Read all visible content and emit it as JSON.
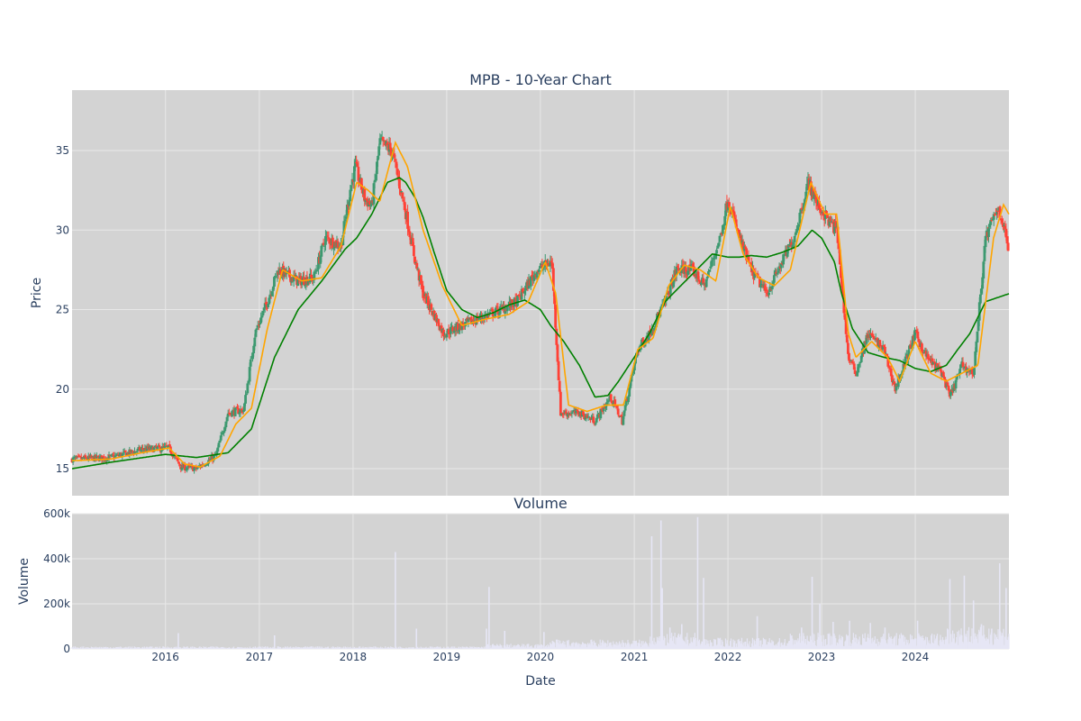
{
  "chart_data": [
    {
      "type": "candlestick",
      "title": "MPB - 10-Year Chart",
      "ylabel": "Price",
      "xlim": [
        "2015-01-02",
        "2024-12-31"
      ],
      "ylim": [
        13.3,
        38.8
      ],
      "yticks": [
        15,
        20,
        25,
        30,
        35
      ],
      "grid": true,
      "legend": "none",
      "colors": {
        "background": "#d3d3d3",
        "grid": "#e8e8e8",
        "increasing": "#3d9970",
        "decreasing": "#ff4136",
        "ma_short": "#ffa500",
        "ma_long": "#008000"
      },
      "price_path": {
        "x": [
          "2015-01-02",
          "2015-06-01",
          "2015-10-01",
          "2016-01-15",
          "2016-03-01",
          "2016-05-01",
          "2016-07-15",
          "2016-09-01",
          "2016-11-01",
          "2016-12-15",
          "2017-02-01",
          "2017-03-15",
          "2017-06-01",
          "2017-08-01",
          "2017-09-15",
          "2017-11-15",
          "2017-12-20",
          "2018-01-10",
          "2018-02-15",
          "2018-03-15",
          "2018-04-15",
          "2018-06-01",
          "2018-07-20",
          "2018-09-01",
          "2018-10-01",
          "2018-12-20",
          "2019-03-01",
          "2019-05-15",
          "2019-08-01",
          "2019-10-01",
          "2019-12-20",
          "2020-02-15",
          "2020-03-20",
          "2020-06-01",
          "2020-08-01",
          "2020-10-01",
          "2020-11-15",
          "2021-01-15",
          "2021-03-01",
          "2021-05-01",
          "2021-06-15",
          "2021-08-15",
          "2021-10-01",
          "2021-12-01",
          "2022-01-01",
          "2022-02-15",
          "2022-04-01",
          "2022-06-01",
          "2022-08-01",
          "2022-09-15",
          "2022-11-10",
          "2022-12-20",
          "2023-02-01",
          "2023-03-01",
          "2023-04-15",
          "2023-05-15",
          "2023-07-01",
          "2023-09-01",
          "2023-10-15",
          "2024-01-01",
          "2024-02-15",
          "2024-04-15",
          "2024-05-15",
          "2024-07-01",
          "2024-08-15",
          "2024-10-01",
          "2024-11-20",
          "2024-12-31"
        ],
        "price": [
          15.6,
          15.7,
          16.2,
          16.3,
          15.1,
          15.0,
          15.8,
          18.5,
          18.7,
          23.5,
          25.5,
          27.5,
          26.8,
          27.0,
          29.5,
          29.0,
          32.5,
          34.0,
          32.0,
          31.5,
          35.5,
          35.0,
          31.5,
          28.0,
          26.0,
          23.5,
          24.0,
          24.5,
          25.0,
          25.5,
          27.5,
          28.0,
          18.5,
          18.5,
          18.0,
          19.5,
          18.0,
          22.5,
          23.5,
          25.5,
          27.5,
          27.5,
          26.5,
          29.5,
          32.0,
          29.5,
          27.5,
          26.0,
          28.0,
          29.5,
          33.0,
          31.5,
          30.5,
          30.0,
          22.0,
          21.0,
          23.5,
          22.5,
          20.0,
          23.5,
          22.0,
          21.0,
          19.5,
          21.5,
          21.0,
          29.5,
          31.5,
          28.8
        ]
      },
      "ma_short": {
        "x": [
          "2015-01-02",
          "2015-06-01",
          "2015-10-01",
          "2016-01-15",
          "2016-03-15",
          "2016-05-15",
          "2016-08-01",
          "2016-10-01",
          "2016-12-01",
          "2017-02-01",
          "2017-04-01",
          "2017-06-15",
          "2017-09-01",
          "2017-11-15",
          "2018-01-15",
          "2018-03-01",
          "2018-04-15",
          "2018-06-15",
          "2018-08-01",
          "2018-10-01",
          "2018-12-15",
          "2019-03-01",
          "2019-06-01",
          "2019-09-01",
          "2019-11-15",
          "2020-01-20",
          "2020-03-01",
          "2020-04-20",
          "2020-07-01",
          "2020-09-15",
          "2020-11-20",
          "2021-01-15",
          "2021-03-15",
          "2021-05-15",
          "2021-07-15",
          "2021-09-15",
          "2021-11-15",
          "2022-01-10",
          "2022-03-01",
          "2022-05-01",
          "2022-07-01",
          "2022-09-01",
          "2022-11-20",
          "2023-01-15",
          "2023-03-01",
          "2023-04-15",
          "2023-05-15",
          "2023-07-15",
          "2023-09-15",
          "2023-11-01",
          "2024-01-01",
          "2024-03-01",
          "2024-05-01",
          "2024-07-01",
          "2024-09-01",
          "2024-11-01",
          "2024-12-10",
          "2024-12-31"
        ],
        "value": [
          15.5,
          15.6,
          16.0,
          16.3,
          15.3,
          15.1,
          15.8,
          17.8,
          18.8,
          23.8,
          27.5,
          26.8,
          27.0,
          29.0,
          33.0,
          32.5,
          31.8,
          35.5,
          34.0,
          30.0,
          26.5,
          24.0,
          24.4,
          24.7,
          25.5,
          28.0,
          26.0,
          19.0,
          18.6,
          19.0,
          19.0,
          22.5,
          23.2,
          26.5,
          27.8,
          27.5,
          26.8,
          31.5,
          28.5,
          27.0,
          26.5,
          27.5,
          33.0,
          31.0,
          31.0,
          23.5,
          22.0,
          23.0,
          22.0,
          20.5,
          23.0,
          21.0,
          20.5,
          21.0,
          21.5,
          29.5,
          31.6,
          31.0
        ]
      },
      "ma_long": {
        "x": [
          "2015-01-02",
          "2015-06-01",
          "2016-01-01",
          "2016-05-01",
          "2016-09-01",
          "2016-12-01",
          "2017-03-01",
          "2017-06-01",
          "2017-09-01",
          "2017-12-01",
          "2018-01-15",
          "2018-03-15",
          "2018-05-15",
          "2018-07-01",
          "2018-07-25",
          "2018-09-01",
          "2018-10-01",
          "2018-11-15",
          "2019-01-01",
          "2019-03-01",
          "2019-05-01",
          "2019-07-01",
          "2019-09-01",
          "2019-11-01",
          "2020-01-01",
          "2020-02-10",
          "2020-04-01",
          "2020-06-01",
          "2020-08-01",
          "2020-09-20",
          "2020-11-01",
          "2021-01-01",
          "2021-03-01",
          "2021-05-01",
          "2021-07-01",
          "2021-09-01",
          "2021-11-01",
          "2022-01-01",
          "2022-02-15",
          "2022-04-01",
          "2022-06-01",
          "2022-08-01",
          "2022-10-01",
          "2022-11-25",
          "2023-01-01",
          "2023-02-20",
          "2023-03-20",
          "2023-05-01",
          "2023-07-01",
          "2023-09-01",
          "2023-11-01",
          "2024-01-01",
          "2024-03-01",
          "2024-05-01",
          "2024-06-15",
          "2024-08-01",
          "2024-10-01",
          "2024-12-31"
        ],
        "value": [
          15.0,
          15.4,
          15.9,
          15.7,
          16.0,
          17.5,
          22.0,
          25.0,
          26.8,
          28.8,
          29.5,
          31.0,
          33.0,
          33.3,
          33.0,
          32.0,
          30.8,
          28.5,
          26.2,
          25.0,
          24.5,
          24.8,
          25.3,
          25.6,
          25.0,
          24.0,
          23.0,
          21.5,
          19.5,
          19.6,
          20.5,
          22.0,
          23.5,
          25.5,
          26.5,
          27.5,
          28.5,
          28.3,
          28.3,
          28.4,
          28.3,
          28.6,
          29.0,
          30.0,
          29.5,
          28.0,
          26.0,
          23.8,
          22.3,
          22.0,
          21.8,
          21.3,
          21.1,
          21.5,
          22.5,
          23.5,
          25.5,
          26.0
        ]
      }
    },
    {
      "type": "bar",
      "title": "Volume",
      "xlabel": "Date",
      "ylabel": "Volume",
      "xlim": [
        "2015-01-02",
        "2024-12-31"
      ],
      "xticks": [
        "2016",
        "2017",
        "2018",
        "2019",
        "2020",
        "2021",
        "2022",
        "2023",
        "2024"
      ],
      "ylim": [
        0,
        600000
      ],
      "yticks": [
        0,
        200000,
        400000,
        600000
      ],
      "ytick_labels": [
        "0",
        "200k",
        "400k",
        "600k"
      ],
      "grid": true,
      "colors": {
        "background": "#d3d3d3",
        "bar": "#e6e6f5"
      },
      "spikes": [
        {
          "x": "2016-02-20",
          "value": 70000
        },
        {
          "x": "2017-03-01",
          "value": 60000
        },
        {
          "x": "2018-06-15",
          "value": 430000
        },
        {
          "x": "2018-09-05",
          "value": 90000
        },
        {
          "x": "2019-06-15",
          "value": 275000
        },
        {
          "x": "2019-06-05",
          "value": 90000
        },
        {
          "x": "2019-08-15",
          "value": 80000
        },
        {
          "x": "2020-01-15",
          "value": 75000
        },
        {
          "x": "2021-03-10",
          "value": 500000
        },
        {
          "x": "2021-04-15",
          "value": 570000
        },
        {
          "x": "2021-04-20",
          "value": 270000
        },
        {
          "x": "2021-05-20",
          "value": 95000
        },
        {
          "x": "2021-07-05",
          "value": 110000
        },
        {
          "x": "2021-09-05",
          "value": 585000
        },
        {
          "x": "2021-09-28",
          "value": 315000
        },
        {
          "x": "2022-04-25",
          "value": 145000
        },
        {
          "x": "2022-10-15",
          "value": 95000
        },
        {
          "x": "2022-11-25",
          "value": 320000
        },
        {
          "x": "2022-12-25",
          "value": 200000
        },
        {
          "x": "2023-02-15",
          "value": 120000
        },
        {
          "x": "2023-04-20",
          "value": 125000
        },
        {
          "x": "2023-07-10",
          "value": 115000
        },
        {
          "x": "2023-09-05",
          "value": 95000
        },
        {
          "x": "2024-01-10",
          "value": 125000
        },
        {
          "x": "2024-05-15",
          "value": 310000
        },
        {
          "x": "2024-07-10",
          "value": 325000
        },
        {
          "x": "2024-08-15",
          "value": 215000
        },
        {
          "x": "2024-09-15",
          "value": 110000
        },
        {
          "x": "2024-10-25",
          "value": 90000
        },
        {
          "x": "2024-11-25",
          "value": 380000
        },
        {
          "x": "2024-12-20",
          "value": 270000
        }
      ],
      "baseline": [
        {
          "from": "2015-01-02",
          "to": "2019-05-31",
          "value": 6000
        },
        {
          "from": "2019-06-01",
          "to": "2020-01-31",
          "value": 12000
        },
        {
          "from": "2020-02-01",
          "to": "2021-02-28",
          "value": 22000
        },
        {
          "from": "2021-03-01",
          "to": "2021-08-31",
          "value": 38000
        },
        {
          "from": "2021-09-01",
          "to": "2022-08-31",
          "value": 26000
        },
        {
          "from": "2022-09-01",
          "to": "2024-04-30",
          "value": 38000
        },
        {
          "from": "2024-05-01",
          "to": "2024-12-31",
          "value": 55000
        }
      ]
    }
  ]
}
